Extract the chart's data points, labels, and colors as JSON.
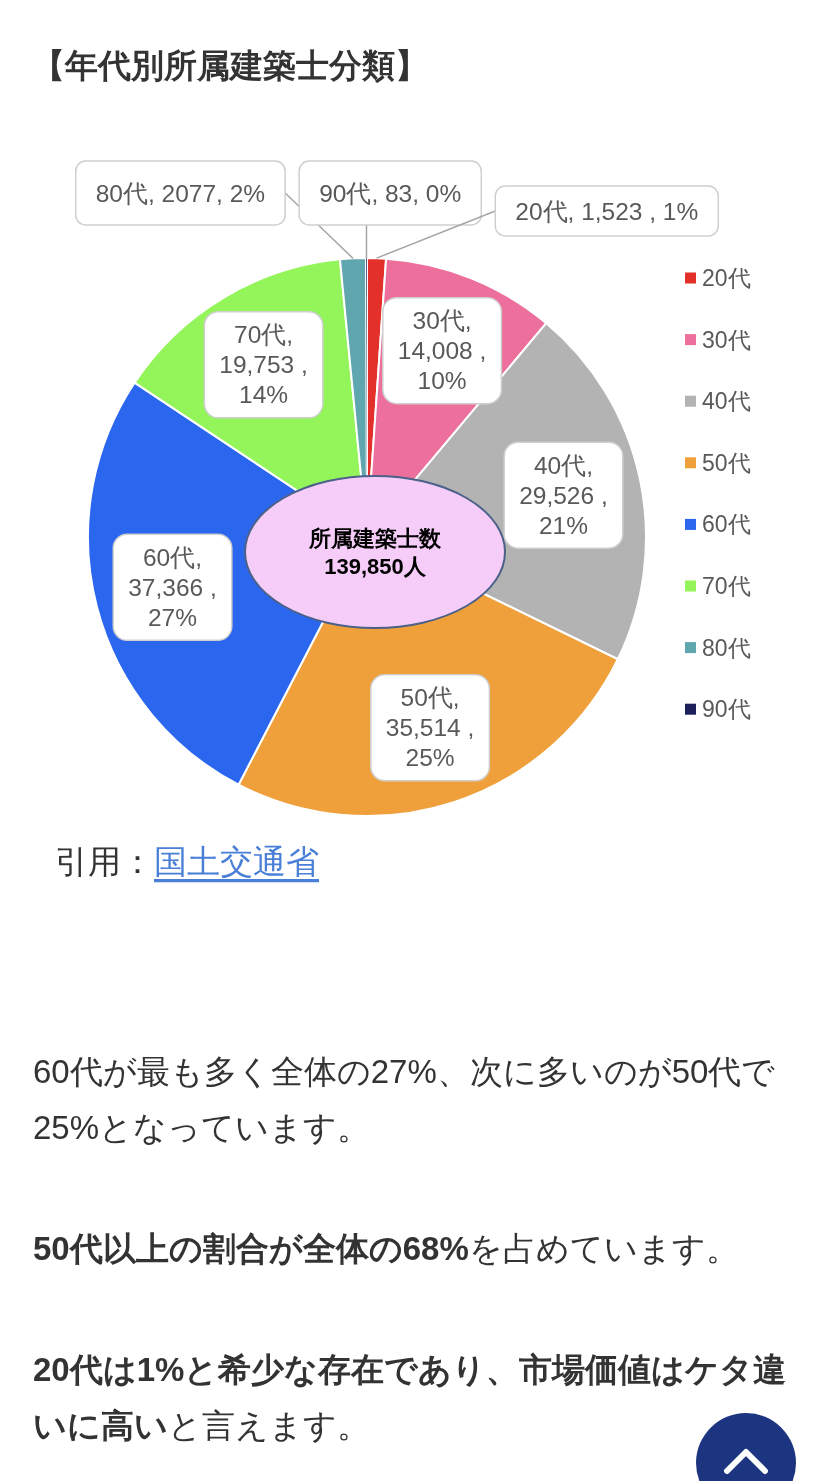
{
  "chart_data": {
    "type": "pie",
    "title": "【年代別所属建築士分類】",
    "categories": [
      "20代",
      "30代",
      "40代",
      "50代",
      "60代",
      "70代",
      "80代",
      "90代"
    ],
    "values": [
      1523,
      14008,
      29526,
      35514,
      37366,
      19753,
      2077,
      83
    ],
    "colors": [
      "#e3302a",
      "#ec6f9c",
      "#b3b3b3",
      "#efa03a",
      "#2a66ee",
      "#93f55a",
      "#5fa6af",
      "#1c1f5a"
    ],
    "value_labels": [
      "20代, 1,523 , 1%",
      "30代, 14,008 , 10%",
      "40代, 29,526 , 21%",
      "50代, 35,514 , 25%",
      "60代, 37,366 , 27%",
      "70代, 19,753 , 14%",
      "80代, 2077, 2%",
      "90代, 83, 0%"
    ],
    "legend": "right",
    "annotations": [
      "所属建築士数 139,850人",
      "引用：国土交通省",
      "60代が最も多く全体の27%、次に多いのが50代で25%となっています。",
      "**50代以上の割合が全体の68%**を占めています。",
      "**20代は1%と希少な存在であり、市場価値はケタ違いに高い**と言えます。"
    ]
  }
}
